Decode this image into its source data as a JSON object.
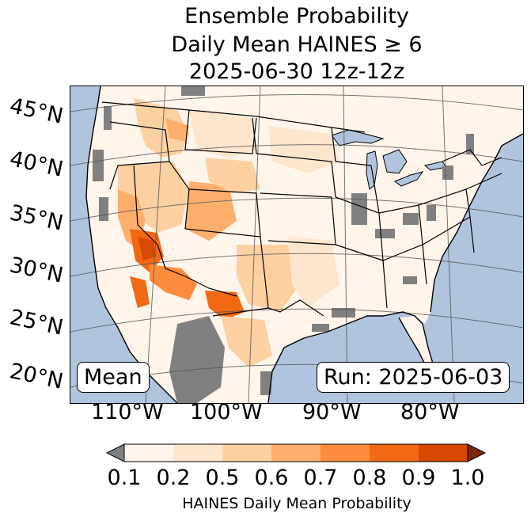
{
  "title": {
    "line1": "Ensemble Probability",
    "line2": "Daily Mean HAINES ≥ 6",
    "line3": "2025-06-30 12z-12z"
  },
  "map": {
    "region": "Continental United States",
    "latitude_labels": [
      "45°N",
      "40°N",
      "35°N",
      "30°N",
      "25°N",
      "20°N"
    ],
    "longitude_labels": [
      "110°W",
      "100°W",
      "90°W",
      "80°W"
    ],
    "ocean_color": "#b0c4de",
    "no_data_color": "#808080",
    "label_left": "Mean",
    "label_right": "Run: 2025-06-03"
  },
  "colorbar": {
    "label": "HAINES Daily Mean Probability",
    "ticks": [
      "0.1",
      "0.2",
      "0.5",
      "0.6",
      "0.7",
      "0.8",
      "0.9",
      "1.0"
    ],
    "under_color": "#808080",
    "over_color": "#7f2704",
    "colors": [
      "#fff5eb",
      "#fee6ce",
      "#fdd0a2",
      "#fdae6b",
      "#fd8d3c",
      "#f16913",
      "#d94801"
    ]
  },
  "probability_patches": [
    {
      "area": "Pacific Northwest / Idaho",
      "class": 3
    },
    {
      "area": "Montana",
      "class": 2
    },
    {
      "area": "Great Basin",
      "class": 3
    },
    {
      "area": "Colorado Plateau",
      "class": 4
    },
    {
      "area": "Lower Colorado River",
      "class": 7
    },
    {
      "area": "Southern Arizona / Sonora",
      "class": 6
    },
    {
      "area": "Big Bend Texas",
      "class": 6
    },
    {
      "area": "West Texas",
      "class": 3
    },
    {
      "area": "Southern Plains",
      "class": 2
    },
    {
      "area": "Northern Mexico",
      "class": 3
    }
  ]
}
